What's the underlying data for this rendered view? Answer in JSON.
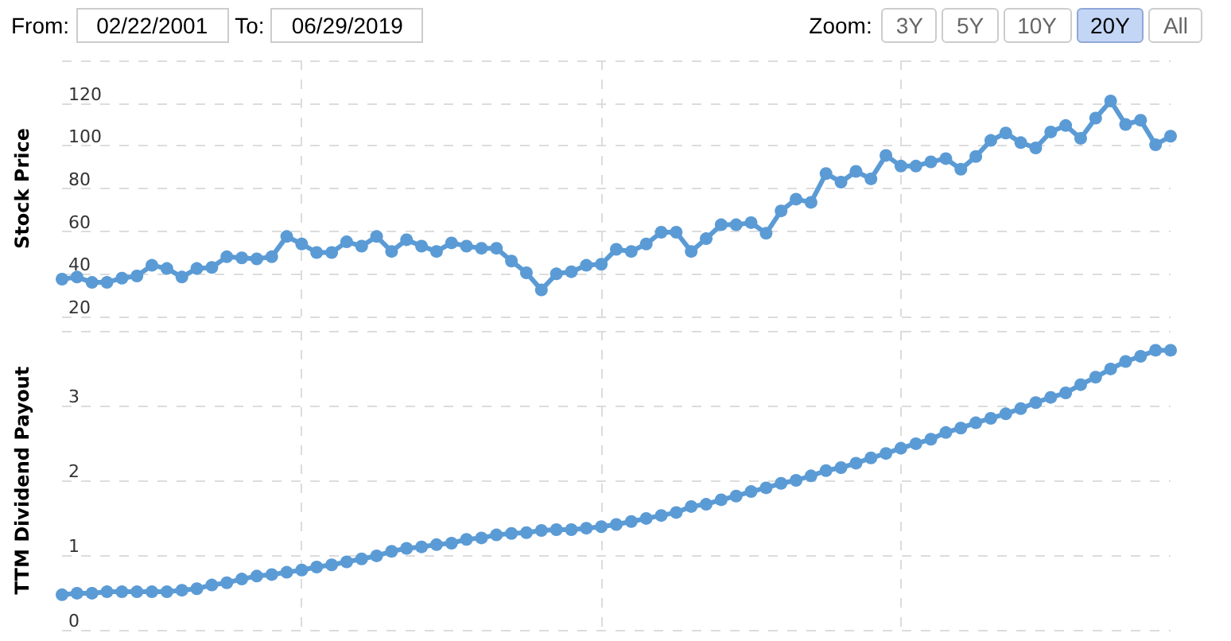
{
  "chart_data": [
    {
      "type": "line",
      "ylabel": "Stock Price",
      "annotations": [
        "From:",
        "02/22/2001",
        "To:",
        "06/29/2019",
        "Zoom:",
        "3Y",
        "5Y",
        "10Y",
        "20Y",
        "All"
      ],
      "categories": [
        null,
        null,
        null,
        null,
        null,
        null,
        null,
        null,
        null,
        null,
        null,
        null,
        null,
        null,
        null,
        null,
        null,
        null,
        null,
        null,
        null,
        null,
        null,
        null,
        null,
        null,
        null,
        null,
        null,
        null,
        null,
        null,
        null,
        null,
        null,
        null,
        null,
        null,
        null,
        null,
        null,
        null,
        null,
        null,
        null,
        null,
        null,
        null,
        null,
        null,
        null,
        null,
        null,
        null,
        null,
        null,
        null,
        null,
        null,
        null,
        null,
        null,
        null,
        null,
        null,
        null,
        null,
        null,
        null,
        null,
        null,
        null,
        null,
        null,
        null
      ],
      "series": [
        {
          "color": "#5b9bd5",
          "values": [
            37.5,
            38.5,
            36,
            36,
            38,
            39,
            44,
            42.5,
            38.5,
            42.5,
            43,
            48,
            47.5,
            47,
            48,
            57.5,
            54,
            50,
            50,
            55,
            53,
            57.5,
            50.5,
            56,
            53,
            50.5,
            54.5,
            53,
            52,
            52,
            46,
            40.5,
            32.5,
            40,
            41,
            44,
            44.5,
            51.5,
            50.5,
            54,
            59.5,
            59.5,
            50.5,
            56.5,
            63,
            63,
            64,
            59,
            69.5,
            75,
            73.5,
            87,
            83,
            88,
            84.5,
            95.5,
            90.5,
            90.5,
            92.5,
            94,
            89,
            95,
            102.5,
            106,
            101.5,
            99,
            106.5,
            109.5,
            103.5,
            113,
            121,
            110,
            112,
            100.5,
            104.5
          ]
        }
      ],
      "ylim": [
        20,
        140
      ],
      "yticks": [
        20,
        40,
        60,
        80,
        100,
        120,
        {
          "value": 140,
          "label": null
        }
      ],
      "grid": true,
      "marker": "circle",
      "tick_labels": "y"
    },
    {
      "type": "line",
      "ylabel": "TTM Dividend Payout",
      "categories": [
        null,
        null,
        null,
        null,
        null,
        null,
        null,
        null,
        null,
        null,
        null,
        null,
        null,
        null,
        null,
        null,
        null,
        null,
        null,
        null,
        null,
        null,
        null,
        null,
        null,
        null,
        null,
        null,
        null,
        null,
        null,
        null,
        null,
        null,
        null,
        null,
        null,
        null,
        null,
        null,
        null,
        null,
        null,
        null,
        null,
        null,
        null,
        null,
        null,
        null,
        null,
        null,
        null,
        null,
        null,
        null,
        null,
        null,
        null,
        null,
        null,
        null,
        null,
        null,
        null,
        null,
        null,
        null,
        null,
        null,
        null,
        null,
        null,
        null,
        null
      ],
      "series": [
        {
          "color": "#5b9bd5",
          "values": [
            0.47,
            0.49,
            0.49,
            0.51,
            0.51,
            0.51,
            0.51,
            0.51,
            0.53,
            0.55,
            0.6,
            0.63,
            0.68,
            0.72,
            0.74,
            0.77,
            0.8,
            0.84,
            0.87,
            0.91,
            0.95,
            0.99,
            1.05,
            1.09,
            1.11,
            1.14,
            1.16,
            1.21,
            1.23,
            1.27,
            1.29,
            1.3,
            1.33,
            1.34,
            1.34,
            1.36,
            1.38,
            1.41,
            1.45,
            1.49,
            1.53,
            1.57,
            1.65,
            1.68,
            1.74,
            1.79,
            1.85,
            1.9,
            1.96,
            2.0,
            2.06,
            2.13,
            2.17,
            2.23,
            2.3,
            2.36,
            2.43,
            2.49,
            2.55,
            2.64,
            2.7,
            2.77,
            2.83,
            2.89,
            2.96,
            3.04,
            3.11,
            3.17,
            3.28,
            3.38,
            3.49,
            3.59,
            3.66,
            3.74,
            3.74
          ]
        }
      ],
      "ylim": [
        0,
        4
      ],
      "yticks": [
        0,
        1,
        2,
        3,
        {
          "value": 4,
          "label": null
        }
      ],
      "grid": true,
      "marker": "circle",
      "tick_labels": "y"
    }
  ]
}
